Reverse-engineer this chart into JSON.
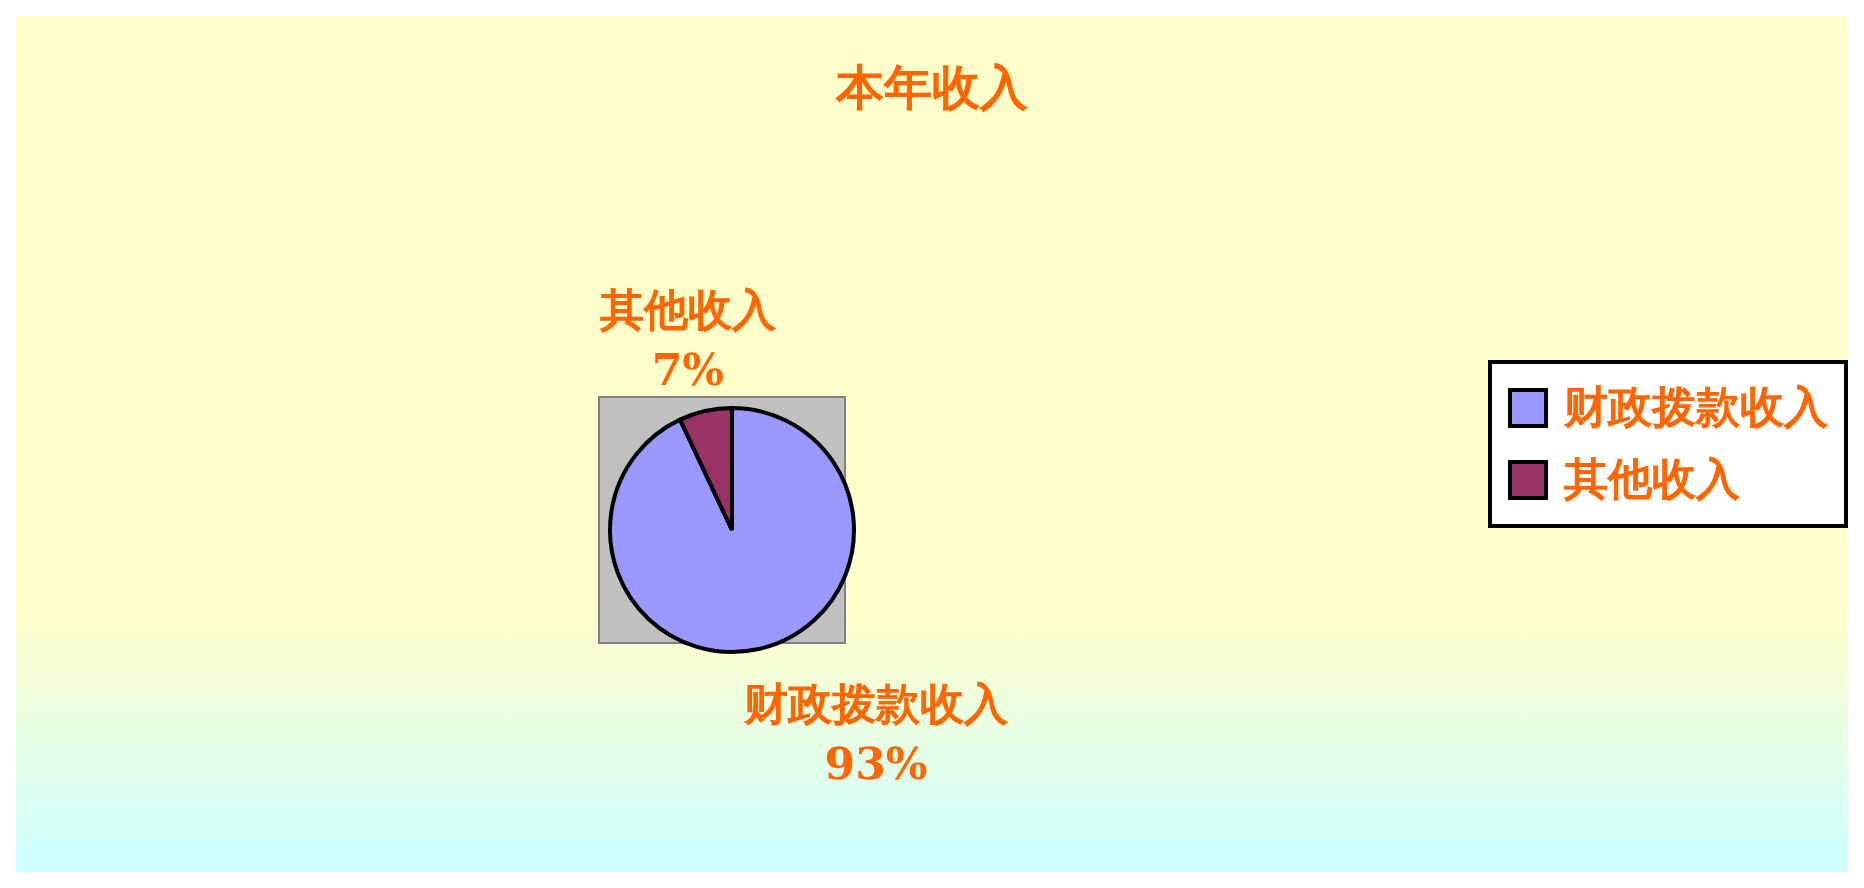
{
  "chart_data": {
    "type": "pie",
    "title": "本年收入",
    "categories": [
      "财政拨款收入",
      "其他收入"
    ],
    "values": [
      93,
      7
    ],
    "value_labels": [
      "93%",
      "7%"
    ],
    "colors": [
      "#9999ff",
      "#993366"
    ],
    "legend": "right"
  }
}
